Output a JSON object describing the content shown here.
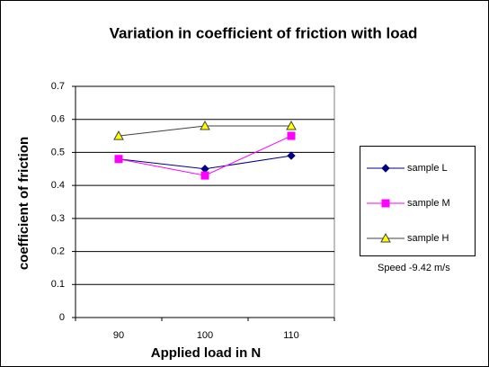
{
  "chart_data": {
    "type": "line",
    "title": "Variation in coefficient of friction with load",
    "x_label": "Applied load in N",
    "y_label": "coefficient of friction",
    "annotation": "Speed -9.42 m/s",
    "categories": [
      "90",
      "100",
      "110"
    ],
    "series": [
      {
        "name": "sample L",
        "color": "#000080",
        "marker": "diamond",
        "values": [
          0.48,
          0.45,
          0.49
        ]
      },
      {
        "name": "sample M",
        "color": "#ff00ff",
        "marker": "square",
        "values": [
          0.48,
          0.43,
          0.55
        ]
      },
      {
        "name": "sample H",
        "color": "#ffff00",
        "marker": "triangle",
        "values": [
          0.55,
          0.58,
          0.58
        ]
      }
    ],
    "ylim": [
      0,
      0.7
    ],
    "yticks": [
      0,
      0.1,
      0.2,
      0.3,
      0.4,
      0.5,
      0.6,
      0.7
    ],
    "grid": true,
    "legend": "right"
  }
}
